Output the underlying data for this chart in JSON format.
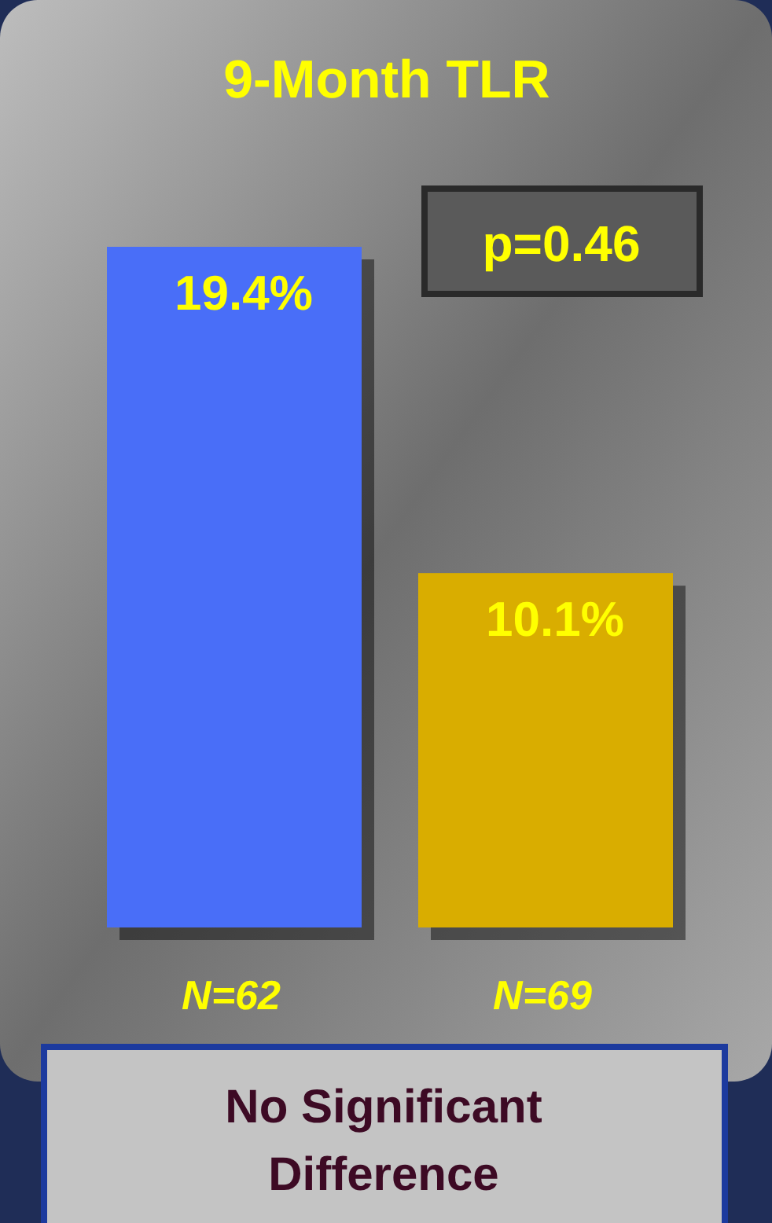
{
  "chart_data": {
    "type": "bar",
    "title": "9-Month TLR",
    "categories": [
      "N=62",
      "N=69"
    ],
    "values": [
      19.4,
      10.1
    ],
    "colors": [
      "#4a6ef8",
      "#d9ad00"
    ],
    "value_labels": [
      "19.4%",
      "10.1%"
    ],
    "annotations": [
      "p=0.46",
      "No Significant Difference"
    ]
  }
}
